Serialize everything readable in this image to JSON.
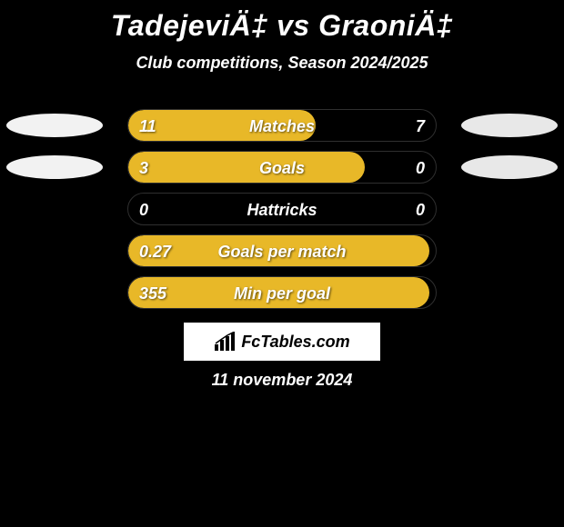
{
  "title": "TadejeviÄ‡ vs GraoniÄ‡",
  "subtitle": "Club competitions, Season 2024/2025",
  "date": "11 november 2024",
  "brand": "FcTables.com",
  "colors": {
    "left_fill": "#e8b828",
    "left_ellipse": "#f2f2f2",
    "right_ellipse": "#e8e8e8",
    "track_border": "#2f2f2f",
    "background": "#000000"
  },
  "rows": [
    {
      "label": "Matches",
      "left": "11",
      "right": "7",
      "fill_pct": 61,
      "show_ellipses": true
    },
    {
      "label": "Goals",
      "left": "3",
      "right": "0",
      "fill_pct": 77,
      "show_ellipses": true
    },
    {
      "label": "Hattricks",
      "left": "0",
      "right": "0",
      "fill_pct": 0,
      "show_ellipses": false
    },
    {
      "label": "Goals per match",
      "left": "0.27",
      "right": "",
      "fill_pct": 98,
      "show_ellipses": false
    },
    {
      "label": "Min per goal",
      "left": "355",
      "right": "",
      "fill_pct": 98,
      "show_ellipses": false
    }
  ]
}
